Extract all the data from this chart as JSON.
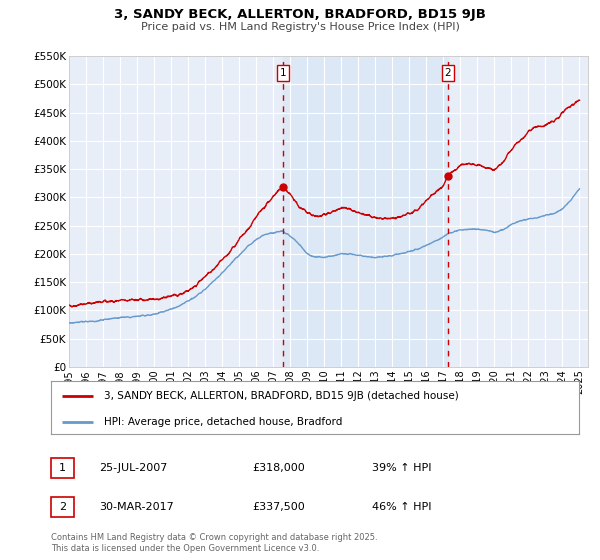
{
  "title": "3, SANDY BECK, ALLERTON, BRADFORD, BD15 9JB",
  "subtitle": "Price paid vs. HM Land Registry's House Price Index (HPI)",
  "background_color": "#ffffff",
  "plot_bg_color": "#e8eef8",
  "shade_color": "#dce8f5",
  "grid_color": "#ffffff",
  "red_line_color": "#cc0000",
  "blue_line_color": "#6699cc",
  "marker1_date": 2007.56,
  "marker1_value": 318000,
  "marker1_text": "25-JUL-2007",
  "marker1_price": "£318,000",
  "marker1_hpi": "39% ↑ HPI",
  "marker2_date": 2017.25,
  "marker2_value": 337500,
  "marker2_text": "30-MAR-2017",
  "marker2_price": "£337,500",
  "marker2_hpi": "46% ↑ HPI",
  "xmin": 1995,
  "xmax": 2025.5,
  "ymin": 0,
  "ymax": 550000,
  "yticks": [
    0,
    50000,
    100000,
    150000,
    200000,
    250000,
    300000,
    350000,
    400000,
    450000,
    500000,
    550000
  ],
  "ylabels": [
    "£0",
    "£50K",
    "£100K",
    "£150K",
    "£200K",
    "£250K",
    "£300K",
    "£350K",
    "£400K",
    "£450K",
    "£500K",
    "£550K"
  ],
  "xticks": [
    1995,
    1996,
    1997,
    1998,
    1999,
    2000,
    2001,
    2002,
    2003,
    2004,
    2005,
    2006,
    2007,
    2008,
    2009,
    2010,
    2011,
    2012,
    2013,
    2014,
    2015,
    2016,
    2017,
    2018,
    2019,
    2020,
    2021,
    2022,
    2023,
    2024,
    2025
  ],
  "legend_red_label": "3, SANDY BECK, ALLERTON, BRADFORD, BD15 9JB (detached house)",
  "legend_blue_label": "HPI: Average price, detached house, Bradford",
  "footer": "Contains HM Land Registry data © Crown copyright and database right 2025.\nThis data is licensed under the Open Government Licence v3.0.",
  "vline1_x": 2007.56,
  "vline2_x": 2017.25,
  "red_key_years": [
    1995.0,
    1995.5,
    1996.0,
    1996.5,
    1997.0,
    1997.5,
    1998.0,
    1998.5,
    1999.0,
    1999.5,
    2000.0,
    2000.5,
    2001.0,
    2001.5,
    2002.0,
    2002.5,
    2003.0,
    2003.5,
    2004.0,
    2004.5,
    2005.0,
    2005.5,
    2006.0,
    2006.5,
    2007.0,
    2007.56,
    2008.0,
    2008.5,
    2009.0,
    2009.5,
    2010.0,
    2010.5,
    2011.0,
    2011.5,
    2012.0,
    2012.5,
    2013.0,
    2013.5,
    2014.0,
    2014.5,
    2015.0,
    2015.5,
    2016.0,
    2016.5,
    2017.0,
    2017.25,
    2017.5,
    2018.0,
    2018.5,
    2019.0,
    2019.5,
    2020.0,
    2020.5,
    2021.0,
    2021.5,
    2022.0,
    2022.5,
    2023.0,
    2023.5,
    2024.0,
    2024.5,
    2025.0
  ],
  "red_key_vals": [
    108000,
    109000,
    112000,
    113000,
    115000,
    116000,
    117000,
    118000,
    118000,
    119000,
    120000,
    122000,
    125000,
    128000,
    135000,
    145000,
    160000,
    172000,
    188000,
    205000,
    225000,
    242000,
    265000,
    283000,
    302000,
    318000,
    305000,
    285000,
    272000,
    265000,
    268000,
    275000,
    282000,
    278000,
    272000,
    268000,
    265000,
    262000,
    263000,
    265000,
    272000,
    278000,
    295000,
    308000,
    320000,
    337500,
    345000,
    355000,
    360000,
    358000,
    352000,
    348000,
    362000,
    385000,
    400000,
    415000,
    425000,
    428000,
    435000,
    450000,
    462000,
    472000
  ],
  "blue_key_years": [
    1995.0,
    1995.5,
    1996.0,
    1996.5,
    1997.0,
    1997.5,
    1998.0,
    1998.5,
    1999.0,
    1999.5,
    2000.0,
    2000.5,
    2001.0,
    2001.5,
    2002.0,
    2002.5,
    2003.0,
    2003.5,
    2004.0,
    2004.5,
    2005.0,
    2005.5,
    2006.0,
    2006.5,
    2007.0,
    2007.56,
    2008.0,
    2008.5,
    2009.0,
    2009.5,
    2010.0,
    2010.5,
    2011.0,
    2011.5,
    2012.0,
    2012.5,
    2013.0,
    2013.5,
    2014.0,
    2014.5,
    2015.0,
    2015.5,
    2016.0,
    2016.5,
    2017.0,
    2017.25,
    2017.5,
    2018.0,
    2018.5,
    2019.0,
    2019.5,
    2020.0,
    2020.5,
    2021.0,
    2021.5,
    2022.0,
    2022.5,
    2023.0,
    2023.5,
    2024.0,
    2024.5,
    2025.0
  ],
  "blue_key_vals": [
    78000,
    79000,
    80000,
    81000,
    83000,
    85000,
    87000,
    88000,
    89000,
    91000,
    93000,
    97000,
    102000,
    108000,
    116000,
    126000,
    138000,
    152000,
    166000,
    182000,
    198000,
    213000,
    225000,
    234000,
    238000,
    240000,
    232000,
    218000,
    200000,
    194000,
    194000,
    196000,
    200000,
    200000,
    197000,
    195000,
    194000,
    195000,
    197000,
    200000,
    204000,
    208000,
    215000,
    222000,
    230000,
    235000,
    238000,
    242000,
    244000,
    244000,
    242000,
    238000,
    242000,
    252000,
    258000,
    262000,
    264000,
    268000,
    272000,
    280000,
    295000,
    315000
  ]
}
